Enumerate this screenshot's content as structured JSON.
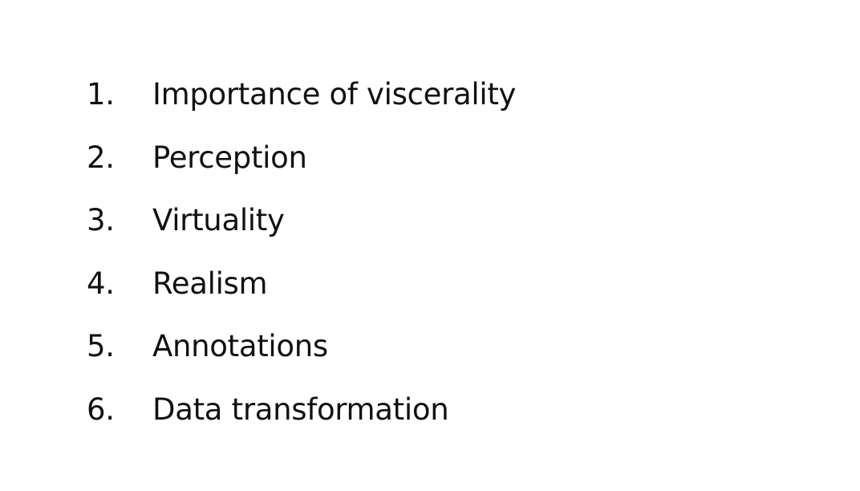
{
  "agenda": {
    "items": [
      {
        "number": "1.",
        "text": "Importance of viscerality"
      },
      {
        "number": "2.",
        "text": "Perception"
      },
      {
        "number": "3.",
        "text": "Virtuality"
      },
      {
        "number": "4.",
        "text": "Realism"
      },
      {
        "number": "5.",
        "text": "Annotations"
      },
      {
        "number": "6.",
        "text": "Data transformation"
      }
    ]
  }
}
